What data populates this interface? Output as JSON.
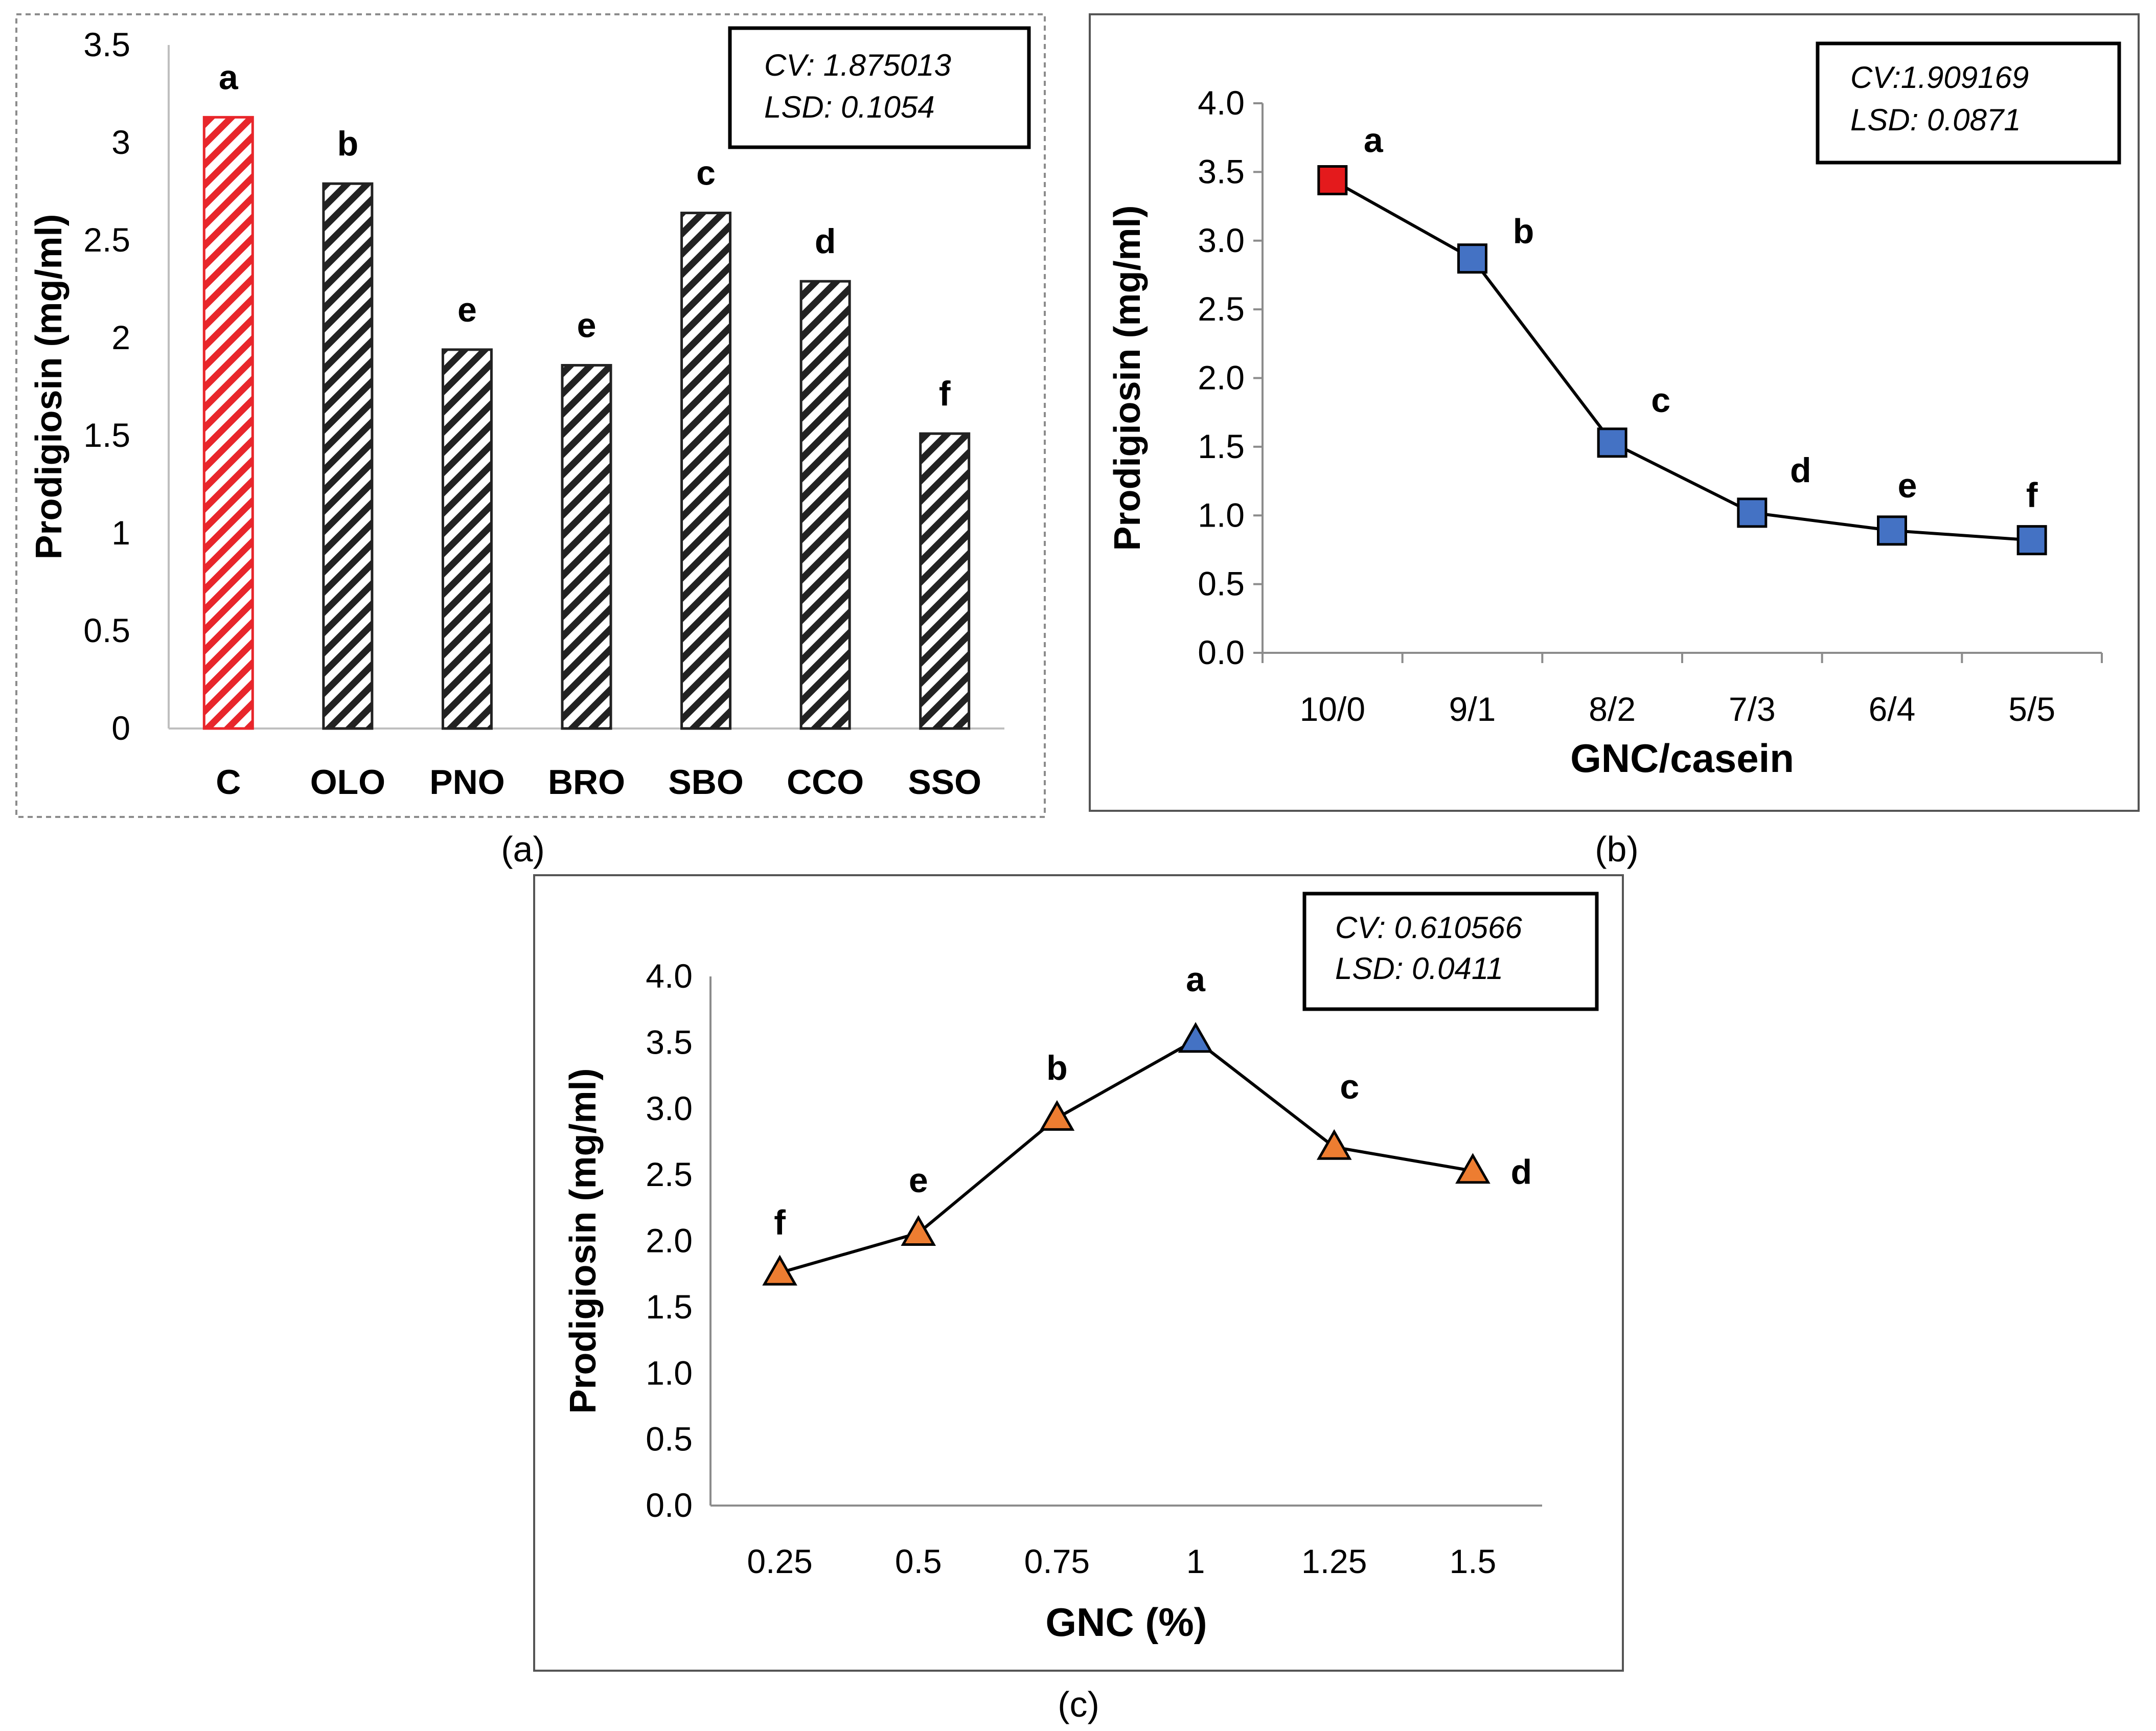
{
  "figure": {
    "captions": [
      "(a)",
      "(b)",
      "(c)"
    ]
  },
  "chart_data": [
    {
      "id": "a",
      "type": "bar",
      "caption": "(a)",
      "ylabel": "Prodigiosin (mg/ml)",
      "xlabel": "",
      "ylim": [
        0,
        3.5
      ],
      "yticks": [
        "0",
        "0.5",
        "1",
        "1.5",
        "2",
        "2.5",
        "3",
        "3.5"
      ],
      "categories": [
        "C",
        "OLO",
        "PNO",
        "BRO",
        "SBO",
        "CCO",
        "SSO"
      ],
      "values": [
        3.13,
        2.79,
        1.94,
        1.86,
        2.64,
        2.29,
        1.51
      ],
      "significance": [
        "a",
        "b",
        "e",
        "e",
        "c",
        "d",
        "f"
      ],
      "bar_colors": [
        "#e8262b",
        "#222222",
        "#222222",
        "#222222",
        "#222222",
        "#222222",
        "#222222"
      ],
      "stats": [
        "CV: 1.875013",
        "LSD: 0.1054"
      ]
    },
    {
      "id": "b",
      "type": "line",
      "caption": "(b)",
      "ylabel": "Prodigiosin (mg/ml)",
      "xlabel": "GNC/casein",
      "ylim": [
        0,
        4
      ],
      "yticks": [
        "0.0",
        "0.5",
        "1.0",
        "1.5",
        "2.0",
        "2.5",
        "3.0",
        "3.5",
        "4.0"
      ],
      "categories": [
        "10/0",
        "9/1",
        "8/2",
        "7/3",
        "6/4",
        "5/5"
      ],
      "values": [
        3.44,
        2.87,
        1.53,
        1.02,
        0.89,
        0.82
      ],
      "significance": [
        "a",
        "b",
        "c",
        "d",
        "e",
        "f"
      ],
      "marker": "square",
      "marker_colors": [
        "#e41a1c",
        "#4472c4",
        "#4472c4",
        "#4472c4",
        "#4472c4",
        "#4472c4"
      ],
      "stats": [
        "CV:1.909169",
        "LSD: 0.0871"
      ]
    },
    {
      "id": "c",
      "type": "line",
      "caption": "(c)",
      "ylabel": "Prodigiosin (mg/ml)",
      "xlabel": "GNC (%)",
      "ylim": [
        0,
        4
      ],
      "yticks": [
        "0.0",
        "0.5",
        "1.0",
        "1.5",
        "2.0",
        "2.5",
        "3.0",
        "3.5",
        "4.0"
      ],
      "categories": [
        "0.25",
        "0.5",
        "0.75",
        "1",
        "1.25",
        "1.5"
      ],
      "values": [
        1.76,
        2.06,
        2.93,
        3.52,
        2.71,
        2.53
      ],
      "significance": [
        "f",
        "e",
        "b",
        "a",
        "c",
        "d"
      ],
      "marker": "triangle",
      "marker_colors": [
        "#ed7d31",
        "#ed7d31",
        "#ed7d31",
        "#4472c4",
        "#ed7d31",
        "#ed7d31"
      ],
      "stats": [
        "CV: 0.610566",
        "LSD: 0.0411"
      ]
    }
  ]
}
